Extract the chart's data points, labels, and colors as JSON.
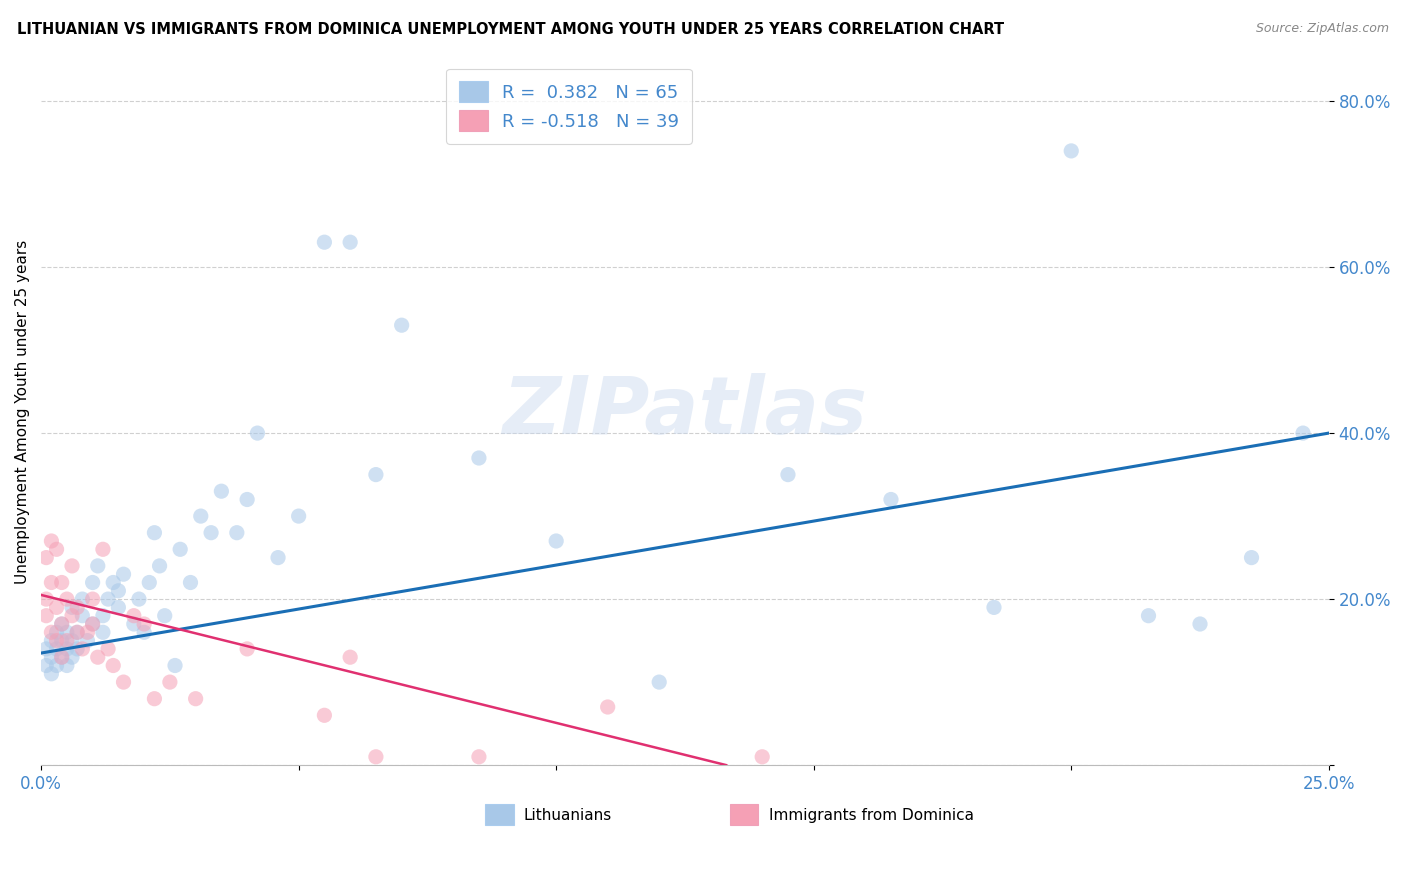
{
  "title": "LITHUANIAN VS IMMIGRANTS FROM DOMINICA UNEMPLOYMENT AMONG YOUTH UNDER 25 YEARS CORRELATION CHART",
  "source": "Source: ZipAtlas.com",
  "ylabel": "Unemployment Among Youth under 25 years",
  "xmin": 0.0,
  "xmax": 0.25,
  "ymin": 0.0,
  "ymax": 0.85,
  "yticks": [
    0.0,
    0.2,
    0.4,
    0.6,
    0.8
  ],
  "ytick_labels": [
    "",
    "20.0%",
    "40.0%",
    "60.0%",
    "80.0%"
  ],
  "xticks": [
    0.0,
    0.05,
    0.1,
    0.15,
    0.2,
    0.25
  ],
  "xtick_labels": [
    "0.0%",
    "",
    "",
    "",
    "",
    "25.0%"
  ],
  "blue_R": 0.382,
  "blue_N": 65,
  "pink_R": -0.518,
  "pink_N": 39,
  "blue_color": "#a8c8e8",
  "pink_color": "#f5a0b5",
  "blue_line_color": "#1a6eb5",
  "pink_line_color": "#e03070",
  "dot_size": 120,
  "dot_alpha": 0.55,
  "watermark": "ZIPatlas",
  "legend_label_blue": "Lithuanians",
  "legend_label_pink": "Immigrants from Dominica",
  "blue_scatter_x": [
    0.001,
    0.001,
    0.002,
    0.002,
    0.002,
    0.003,
    0.003,
    0.003,
    0.004,
    0.004,
    0.004,
    0.005,
    0.005,
    0.005,
    0.006,
    0.006,
    0.006,
    0.007,
    0.007,
    0.008,
    0.008,
    0.009,
    0.01,
    0.01,
    0.011,
    0.012,
    0.012,
    0.013,
    0.014,
    0.015,
    0.015,
    0.016,
    0.018,
    0.019,
    0.02,
    0.021,
    0.022,
    0.023,
    0.024,
    0.026,
    0.027,
    0.029,
    0.031,
    0.033,
    0.035,
    0.038,
    0.04,
    0.042,
    0.046,
    0.05,
    0.055,
    0.06,
    0.065,
    0.07,
    0.085,
    0.1,
    0.12,
    0.145,
    0.165,
    0.185,
    0.2,
    0.215,
    0.225,
    0.235,
    0.245
  ],
  "blue_scatter_y": [
    0.14,
    0.12,
    0.13,
    0.15,
    0.11,
    0.12,
    0.14,
    0.16,
    0.13,
    0.15,
    0.17,
    0.12,
    0.14,
    0.16,
    0.13,
    0.15,
    0.19,
    0.16,
    0.14,
    0.18,
    0.2,
    0.15,
    0.22,
    0.17,
    0.24,
    0.18,
    0.16,
    0.2,
    0.22,
    0.21,
    0.19,
    0.23,
    0.17,
    0.2,
    0.16,
    0.22,
    0.28,
    0.24,
    0.18,
    0.12,
    0.26,
    0.22,
    0.3,
    0.28,
    0.33,
    0.28,
    0.32,
    0.4,
    0.25,
    0.3,
    0.63,
    0.63,
    0.35,
    0.53,
    0.37,
    0.27,
    0.1,
    0.35,
    0.32,
    0.19,
    0.74,
    0.18,
    0.17,
    0.25,
    0.4
  ],
  "pink_scatter_x": [
    0.001,
    0.001,
    0.001,
    0.002,
    0.002,
    0.002,
    0.003,
    0.003,
    0.003,
    0.004,
    0.004,
    0.004,
    0.005,
    0.005,
    0.006,
    0.006,
    0.007,
    0.007,
    0.008,
    0.009,
    0.01,
    0.01,
    0.011,
    0.012,
    0.013,
    0.014,
    0.016,
    0.018,
    0.02,
    0.022,
    0.025,
    0.03,
    0.04,
    0.055,
    0.06,
    0.065,
    0.085,
    0.11,
    0.14
  ],
  "pink_scatter_y": [
    0.25,
    0.2,
    0.18,
    0.27,
    0.22,
    0.16,
    0.26,
    0.19,
    0.15,
    0.22,
    0.17,
    0.13,
    0.2,
    0.15,
    0.18,
    0.24,
    0.16,
    0.19,
    0.14,
    0.16,
    0.17,
    0.2,
    0.13,
    0.26,
    0.14,
    0.12,
    0.1,
    0.18,
    0.17,
    0.08,
    0.1,
    0.08,
    0.14,
    0.06,
    0.13,
    0.01,
    0.01,
    0.07,
    0.01
  ],
  "blue_line_x": [
    0.0,
    0.25
  ],
  "blue_line_y": [
    0.135,
    0.4
  ],
  "pink_line_x": [
    0.0,
    0.133
  ],
  "pink_line_y": [
    0.205,
    0.0
  ],
  "grid_color": "#d0d0d0",
  "axis_tick_color": "#4488cc"
}
